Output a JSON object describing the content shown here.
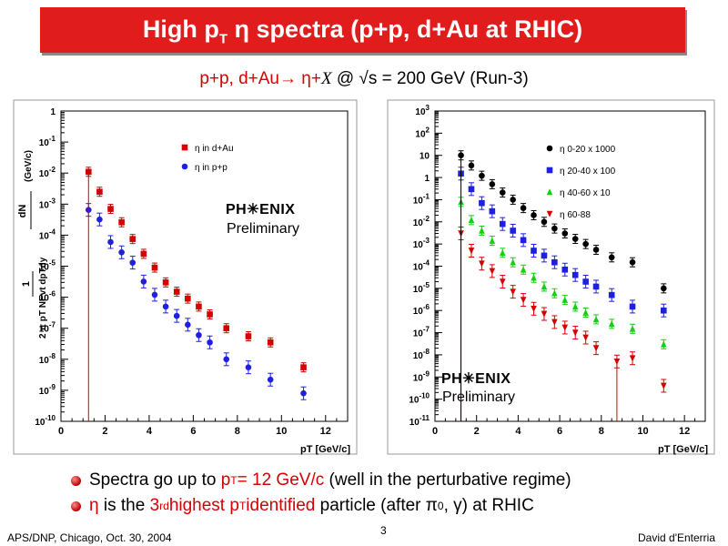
{
  "header": {
    "title_main": "High p",
    "title_sub": "T",
    "title_rest": " η spectra (p+p, d+Au at RHIC)"
  },
  "subtitle": {
    "red": "p+p, d+Au→ η+",
    "x": "X",
    "rest": "  @ √s = 200 GeV (Run-3)"
  },
  "left_plot": {
    "ylabel_top": "dN",
    "ylabel_bottom": "2 π pT NEvt dpTdy",
    "ylabel_one": "1",
    "ylabel_units": "(GeV/c)",
    "logo": "PH✳ENIX",
    "prelim": "Preliminary",
    "xlabel": "pT [GeV/c]"
  },
  "right_plot": {
    "logo": "PH✳ENIX",
    "prelim": "Preliminary",
    "xlabel": "pT [GeV/c]"
  },
  "colors": {
    "red": "#d40000",
    "blue": "#1f1fe0",
    "green": "#10d010",
    "black": "#000000",
    "title_bg": "#e01c1c"
  },
  "chart_data": [
    {
      "type": "scatter",
      "title": "",
      "xlabel": "pT [GeV/c]",
      "ylabel": "1/(2π pT NEvt) dN/dpTdy (GeV/c)^-2",
      "xlim": [
        0,
        13
      ],
      "ylim_log10": [
        -10,
        0
      ],
      "yscale": "log",
      "legend": "top-right",
      "series": [
        {
          "name": "η in d+Au",
          "color": "#d40000",
          "marker": "square",
          "x": [
            1.25,
            1.75,
            2.25,
            2.75,
            3.25,
            3.75,
            4.25,
            4.75,
            5.25,
            5.75,
            6.25,
            6.75,
            7.5,
            8.5,
            9.5,
            11.0
          ],
          "y": [
            0.011,
            0.0025,
            0.0007,
            0.00026,
            7.5e-05,
            2.5e-05,
            9e-06,
            3e-06,
            1.5e-06,
            9e-07,
            5e-07,
            2.8e-07,
            1e-07,
            5.5e-08,
            3.5e-08,
            5.5e-09
          ]
        },
        {
          "name": "η in p+p",
          "color": "#1f1fe0",
          "marker": "circle",
          "x": [
            1.25,
            1.75,
            2.25,
            2.75,
            3.25,
            3.75,
            4.25,
            4.75,
            5.25,
            5.75,
            6.25,
            6.75,
            7.5,
            8.5,
            9.5,
            11.0
          ],
          "y": [
            0.00065,
            0.00032,
            6e-05,
            2.8e-05,
            1.3e-05,
            3.2e-06,
            1.2e-06,
            5e-07,
            2.5e-07,
            1.3e-07,
            6e-08,
            3.5e-08,
            1e-08,
            5.5e-09,
            2.2e-09,
            8e-10
          ]
        }
      ]
    },
    {
      "type": "scatter",
      "title": "",
      "xlabel": "pT [GeV/c]",
      "ylabel": "",
      "xlim": [
        0,
        13
      ],
      "ylim_log10": [
        -11,
        3
      ],
      "yscale": "log",
      "legend": "top-right",
      "series": [
        {
          "name": "η 0-20 x 1000",
          "color": "#000000",
          "marker": "circle",
          "x": [
            1.25,
            1.75,
            2.25,
            2.75,
            3.25,
            3.75,
            4.25,
            4.75,
            5.25,
            5.75,
            6.25,
            6.75,
            7.25,
            7.75,
            8.5,
            9.5,
            11.0
          ],
          "y": [
            10,
            3.5,
            1.2,
            0.5,
            0.21,
            0.1,
            0.042,
            0.02,
            0.01,
            0.005,
            0.003,
            0.0017,
            0.001,
            0.00055,
            0.00025,
            0.00015,
            1e-05
          ]
        },
        {
          "name": "η 20-40 x 100",
          "color": "#1f1fe0",
          "marker": "square",
          "x": [
            1.25,
            1.75,
            2.25,
            2.75,
            3.25,
            3.75,
            4.25,
            4.75,
            5.25,
            5.75,
            6.25,
            6.75,
            7.25,
            7.75,
            8.5,
            9.5,
            11.0
          ],
          "y": [
            1.5,
            0.3,
            0.07,
            0.03,
            0.008,
            0.004,
            0.0015,
            0.0005,
            0.0003,
            0.00015,
            7e-05,
            4e-05,
            2e-05,
            1.2e-05,
            5e-06,
            1.5e-06,
            1e-06
          ]
        },
        {
          "name": "η 40-60 x 10",
          "color": "#10d010",
          "marker": "triangle-up",
          "x": [
            1.25,
            1.75,
            2.25,
            2.75,
            3.25,
            3.75,
            4.25,
            4.75,
            5.25,
            5.75,
            6.25,
            6.75,
            7.25,
            7.75,
            8.5,
            9.5,
            11.0
          ],
          "y": [
            0.08,
            0.012,
            0.004,
            0.0014,
            0.0004,
            0.00015,
            7e-05,
            3e-05,
            1.2e-05,
            6e-06,
            3e-06,
            1.5e-06,
            8e-07,
            4e-07,
            2.5e-07,
            1.5e-07,
            3e-08
          ]
        },
        {
          "name": "η 60-88",
          "color": "#d40000",
          "marker": "triangle-down",
          "x": [
            1.25,
            1.75,
            2.25,
            2.75,
            3.25,
            3.75,
            4.25,
            4.75,
            5.25,
            5.75,
            6.25,
            6.75,
            7.25,
            7.75,
            8.75,
            9.5,
            11.0
          ],
          "y": [
            0.003,
            0.0005,
            0.00013,
            6e-05,
            2e-05,
            7e-06,
            3e-06,
            1.2e-06,
            7e-07,
            3e-07,
            1.7e-07,
            1e-07,
            6e-08,
            2e-08,
            5e-09,
            7e-09,
            4e-10
          ]
        }
      ]
    }
  ],
  "bullets": {
    "b1_a": "Spectra go up to ",
    "b1_red": "p",
    "b1_red_sub": "T",
    "b1_red2": " = 12 GeV/c",
    "b1_b": " (well in the perturbative regime)",
    "b2_red": "η",
    "b2_a": " is the ",
    "b2_red2": "3",
    "b2_sup": "rd",
    "b2_red3": " highest p",
    "b2_sub": "T",
    "b2_red4": " identified",
    "b2_b": " particle (after π",
    "b2_sup0": "0",
    "b2_c": ", γ) at RHIC"
  },
  "footer": {
    "left": "APS/DNP, Chicago, Oct. 30, 2004",
    "page": "3",
    "right": "David d'Enterria"
  }
}
